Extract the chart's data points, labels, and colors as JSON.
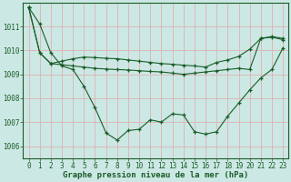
{
  "title": "Graphe pression niveau de la mer (hPa)",
  "bg_color": "#cce8e4",
  "grid_color": "#ddb8b8",
  "line_color": "#1a5c28",
  "xlim": [
    -0.5,
    23.5
  ],
  "ylim": [
    1005.5,
    1012.0
  ],
  "yticks": [
    1006,
    1007,
    1008,
    1009,
    1010,
    1011
  ],
  "xticks": [
    0,
    1,
    2,
    3,
    4,
    5,
    6,
    7,
    8,
    9,
    10,
    11,
    12,
    13,
    14,
    15,
    16,
    17,
    18,
    19,
    20,
    21,
    22,
    23
  ],
  "series1_x": [
    0,
    1,
    2,
    3,
    4,
    5,
    6,
    7,
    8,
    9,
    10,
    11,
    12,
    13,
    14,
    15,
    16,
    17,
    18,
    19,
    20,
    21,
    22,
    23
  ],
  "series1_y": [
    1011.8,
    1011.1,
    1009.9,
    1009.35,
    1009.2,
    1008.5,
    1007.6,
    1006.55,
    1006.25,
    1006.65,
    1006.7,
    1007.1,
    1007.0,
    1007.35,
    1007.3,
    1006.6,
    1006.5,
    1006.6,
    1007.25,
    1007.8,
    1008.35,
    1008.85,
    1009.2,
    1010.1
  ],
  "series2_x": [
    0,
    1,
    2,
    3,
    4,
    5,
    6,
    7,
    8,
    9,
    10,
    11,
    12,
    13,
    14,
    15,
    16,
    17,
    18,
    19,
    20,
    21,
    22,
    23
  ],
  "series2_y": [
    1011.8,
    1009.9,
    1009.45,
    1009.4,
    1009.35,
    1009.3,
    1009.25,
    1009.22,
    1009.2,
    1009.18,
    1009.15,
    1009.12,
    1009.1,
    1009.05,
    1009.0,
    1009.05,
    1009.1,
    1009.15,
    1009.2,
    1009.25,
    1009.2,
    1010.5,
    1010.55,
    1010.45
  ],
  "series3_x": [
    0,
    1,
    2,
    3,
    4,
    5,
    6,
    7,
    8,
    9,
    10,
    11,
    12,
    13,
    14,
    15,
    16,
    17,
    18,
    19,
    20,
    21,
    22,
    23
  ],
  "series3_y": [
    1011.8,
    1009.9,
    1009.45,
    1009.55,
    1009.65,
    1009.72,
    1009.7,
    1009.67,
    1009.65,
    1009.6,
    1009.55,
    1009.5,
    1009.45,
    1009.42,
    1009.38,
    1009.35,
    1009.3,
    1009.5,
    1009.6,
    1009.75,
    1010.05,
    1010.5,
    1010.58,
    1010.5
  ],
  "tick_fontsize": 5.5,
  "xlabel_fontsize": 6.5,
  "tick_color": "#1a5c28",
  "spine_color": "#1a5c28"
}
